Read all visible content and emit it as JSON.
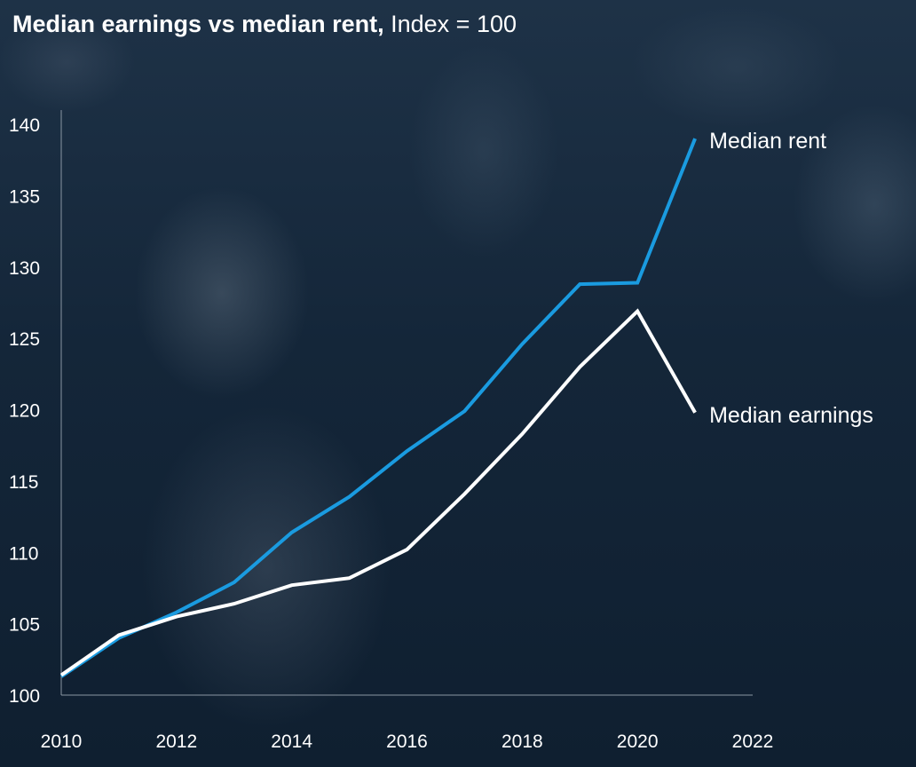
{
  "title": {
    "bold": "Median earnings vs median rent,",
    "normal": " Index = 100"
  },
  "chart_data": {
    "type": "line",
    "title": "Median earnings vs median rent, Index = 100",
    "xlabel": "",
    "ylabel": "",
    "x": [
      2010,
      2011,
      2012,
      2013,
      2014,
      2015,
      2016,
      2017,
      2018,
      2019,
      2020,
      2021
    ],
    "xlim": [
      2010,
      2022
    ],
    "ylim": [
      100,
      141
    ],
    "xticks": [
      "2010",
      "2012",
      "2014",
      "2016",
      "2018",
      "2020",
      "2022"
    ],
    "yticks": [
      "100",
      "105",
      "110",
      "115",
      "120",
      "125",
      "130",
      "135",
      "140"
    ],
    "grid": false,
    "legend": "direct labels at line ends",
    "series": [
      {
        "name": "Median rent",
        "color": "#1a9be0",
        "values": [
          101.3,
          104.0,
          105.8,
          107.9,
          111.4,
          113.9,
          117.1,
          119.9,
          124.6,
          128.8,
          128.9,
          139.0
        ]
      },
      {
        "name": "Median earnings",
        "color": "#ffffff",
        "values": [
          101.4,
          104.2,
          105.5,
          106.4,
          107.7,
          108.2,
          110.2,
          114.1,
          118.3,
          123.0,
          126.9,
          119.8
        ]
      }
    ]
  }
}
